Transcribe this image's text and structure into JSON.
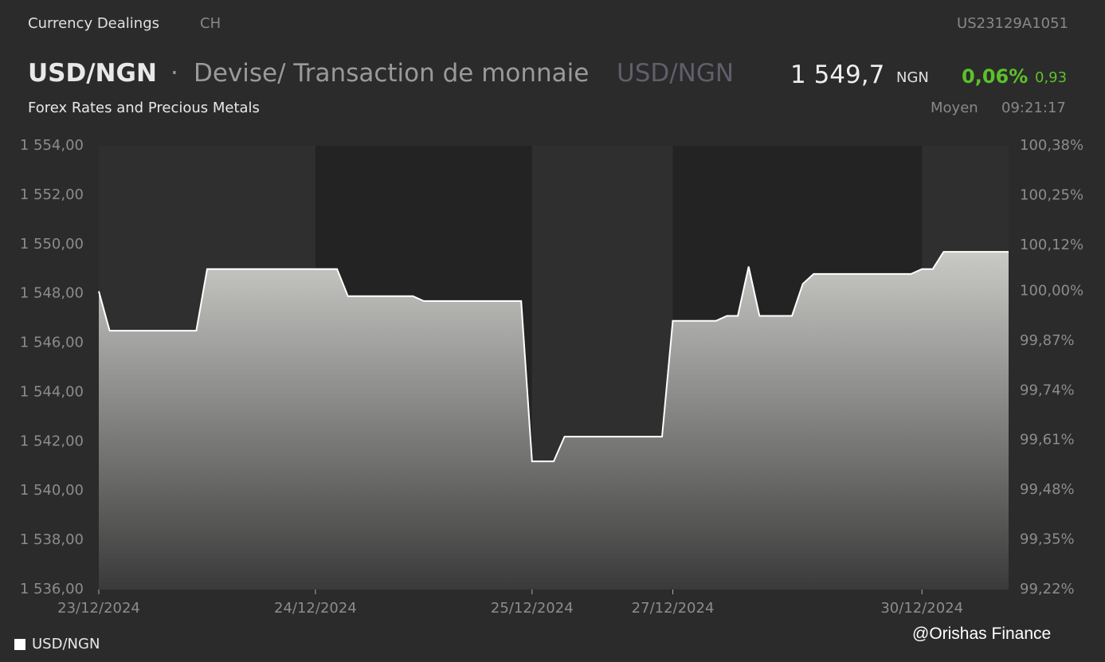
{
  "header": {
    "section": "Currency Dealings",
    "market": "CH",
    "isin": "US23129A1051",
    "symbol": "USD/NGN",
    "separator": "·",
    "description": "Devise/ Transaction de monnaie",
    "symbol_alt": "USD/NGN",
    "price": "1 549,7",
    "currency": "NGN",
    "change_pct": "0,06%",
    "change_abs": "0,93",
    "subtitle": "Forex Rates and Precious Metals",
    "price_type": "Moyen",
    "time": "09:21:17"
  },
  "chart_data": {
    "type": "line",
    "categories": [
      "23/12/2024",
      null,
      null,
      null,
      null,
      null,
      null,
      null,
      null,
      null,
      null,
      null,
      null,
      null,
      null,
      null,
      null,
      null,
      null,
      null,
      "24/12/2024",
      null,
      null,
      null,
      null,
      null,
      null,
      null,
      null,
      null,
      null,
      null,
      null,
      null,
      null,
      null,
      null,
      null,
      null,
      null,
      "25/12/2024",
      null,
      null,
      null,
      null,
      null,
      null,
      null,
      null,
      null,
      null,
      null,
      null,
      "27/12/2024",
      null,
      null,
      null,
      null,
      null,
      null,
      null,
      null,
      null,
      null,
      null,
      null,
      null,
      null,
      null,
      null,
      null,
      null,
      null,
      null,
      null,
      null,
      "30/12/2024",
      null,
      null,
      null,
      null,
      null,
      null,
      null,
      null
    ],
    "series": [
      {
        "name": "USD/NGN",
        "color": "#ffffff",
        "values": [
          1548.1,
          1546.5,
          1546.5,
          1546.5,
          1546.5,
          1546.5,
          1546.5,
          1546.5,
          1546.5,
          1546.5,
          1549.0,
          1549.0,
          1549.0,
          1549.0,
          1549.0,
          1549.0,
          1549.0,
          1549.0,
          1549.0,
          1549.0,
          1549.0,
          1549.0,
          1549.0,
          1547.9,
          1547.9,
          1547.9,
          1547.9,
          1547.9,
          1547.9,
          1547.9,
          1547.7,
          1547.7,
          1547.7,
          1547.7,
          1547.7,
          1547.7,
          1547.7,
          1547.7,
          1547.7,
          1547.7,
          1541.2,
          1541.2,
          1541.2,
          1542.2,
          1542.2,
          1542.2,
          1542.2,
          1542.2,
          1542.2,
          1542.2,
          1542.2,
          1542.2,
          1542.2,
          1546.9,
          1546.9,
          1546.9,
          1546.9,
          1546.9,
          1547.1,
          1547.1,
          1549.1,
          1547.1,
          1547.1,
          1547.1,
          1547.1,
          1548.4,
          1548.8,
          1548.8,
          1548.8,
          1548.8,
          1548.8,
          1548.8,
          1548.8,
          1548.8,
          1548.8,
          1548.8,
          1549.0,
          1549.0,
          1549.7,
          1549.7,
          1549.7,
          1549.7,
          1549.7,
          1549.7,
          1549.7
        ]
      }
    ],
    "ylim": [
      1536,
      1554
    ],
    "yticks": [
      {
        "value": 1536,
        "label": "1 536,00"
      },
      {
        "value": 1538,
        "label": "1 538,00"
      },
      {
        "value": 1540,
        "label": "1 540,00"
      },
      {
        "value": 1542,
        "label": "1 542,00"
      },
      {
        "value": 1544,
        "label": "1 544,00"
      },
      {
        "value": 1546,
        "label": "1 546,00"
      },
      {
        "value": 1548,
        "label": "1 548,00"
      },
      {
        "value": 1550,
        "label": "1 550,00"
      },
      {
        "value": 1552,
        "label": "1 552,00"
      },
      {
        "value": 1554,
        "label": "1 554,00"
      }
    ],
    "y2lim": [
      99.22,
      100.38
    ],
    "y2ticks": [
      {
        "value": 99.22,
        "label": "99,22%"
      },
      {
        "value": 99.35,
        "label": "99,35%"
      },
      {
        "value": 99.48,
        "label": "99,48%"
      },
      {
        "value": 99.61,
        "label": "99,61%"
      },
      {
        "value": 99.74,
        "label": "99,74%"
      },
      {
        "value": 99.87,
        "label": "99,87%"
      },
      {
        "value": 100.0,
        "label": "100,00%"
      },
      {
        "value": 100.12,
        "label": "100,12%"
      },
      {
        "value": 100.25,
        "label": "100,25%"
      },
      {
        "value": 100.38,
        "label": "100,38%"
      }
    ],
    "grid": false
  },
  "watermark": "@Orishas Finance"
}
